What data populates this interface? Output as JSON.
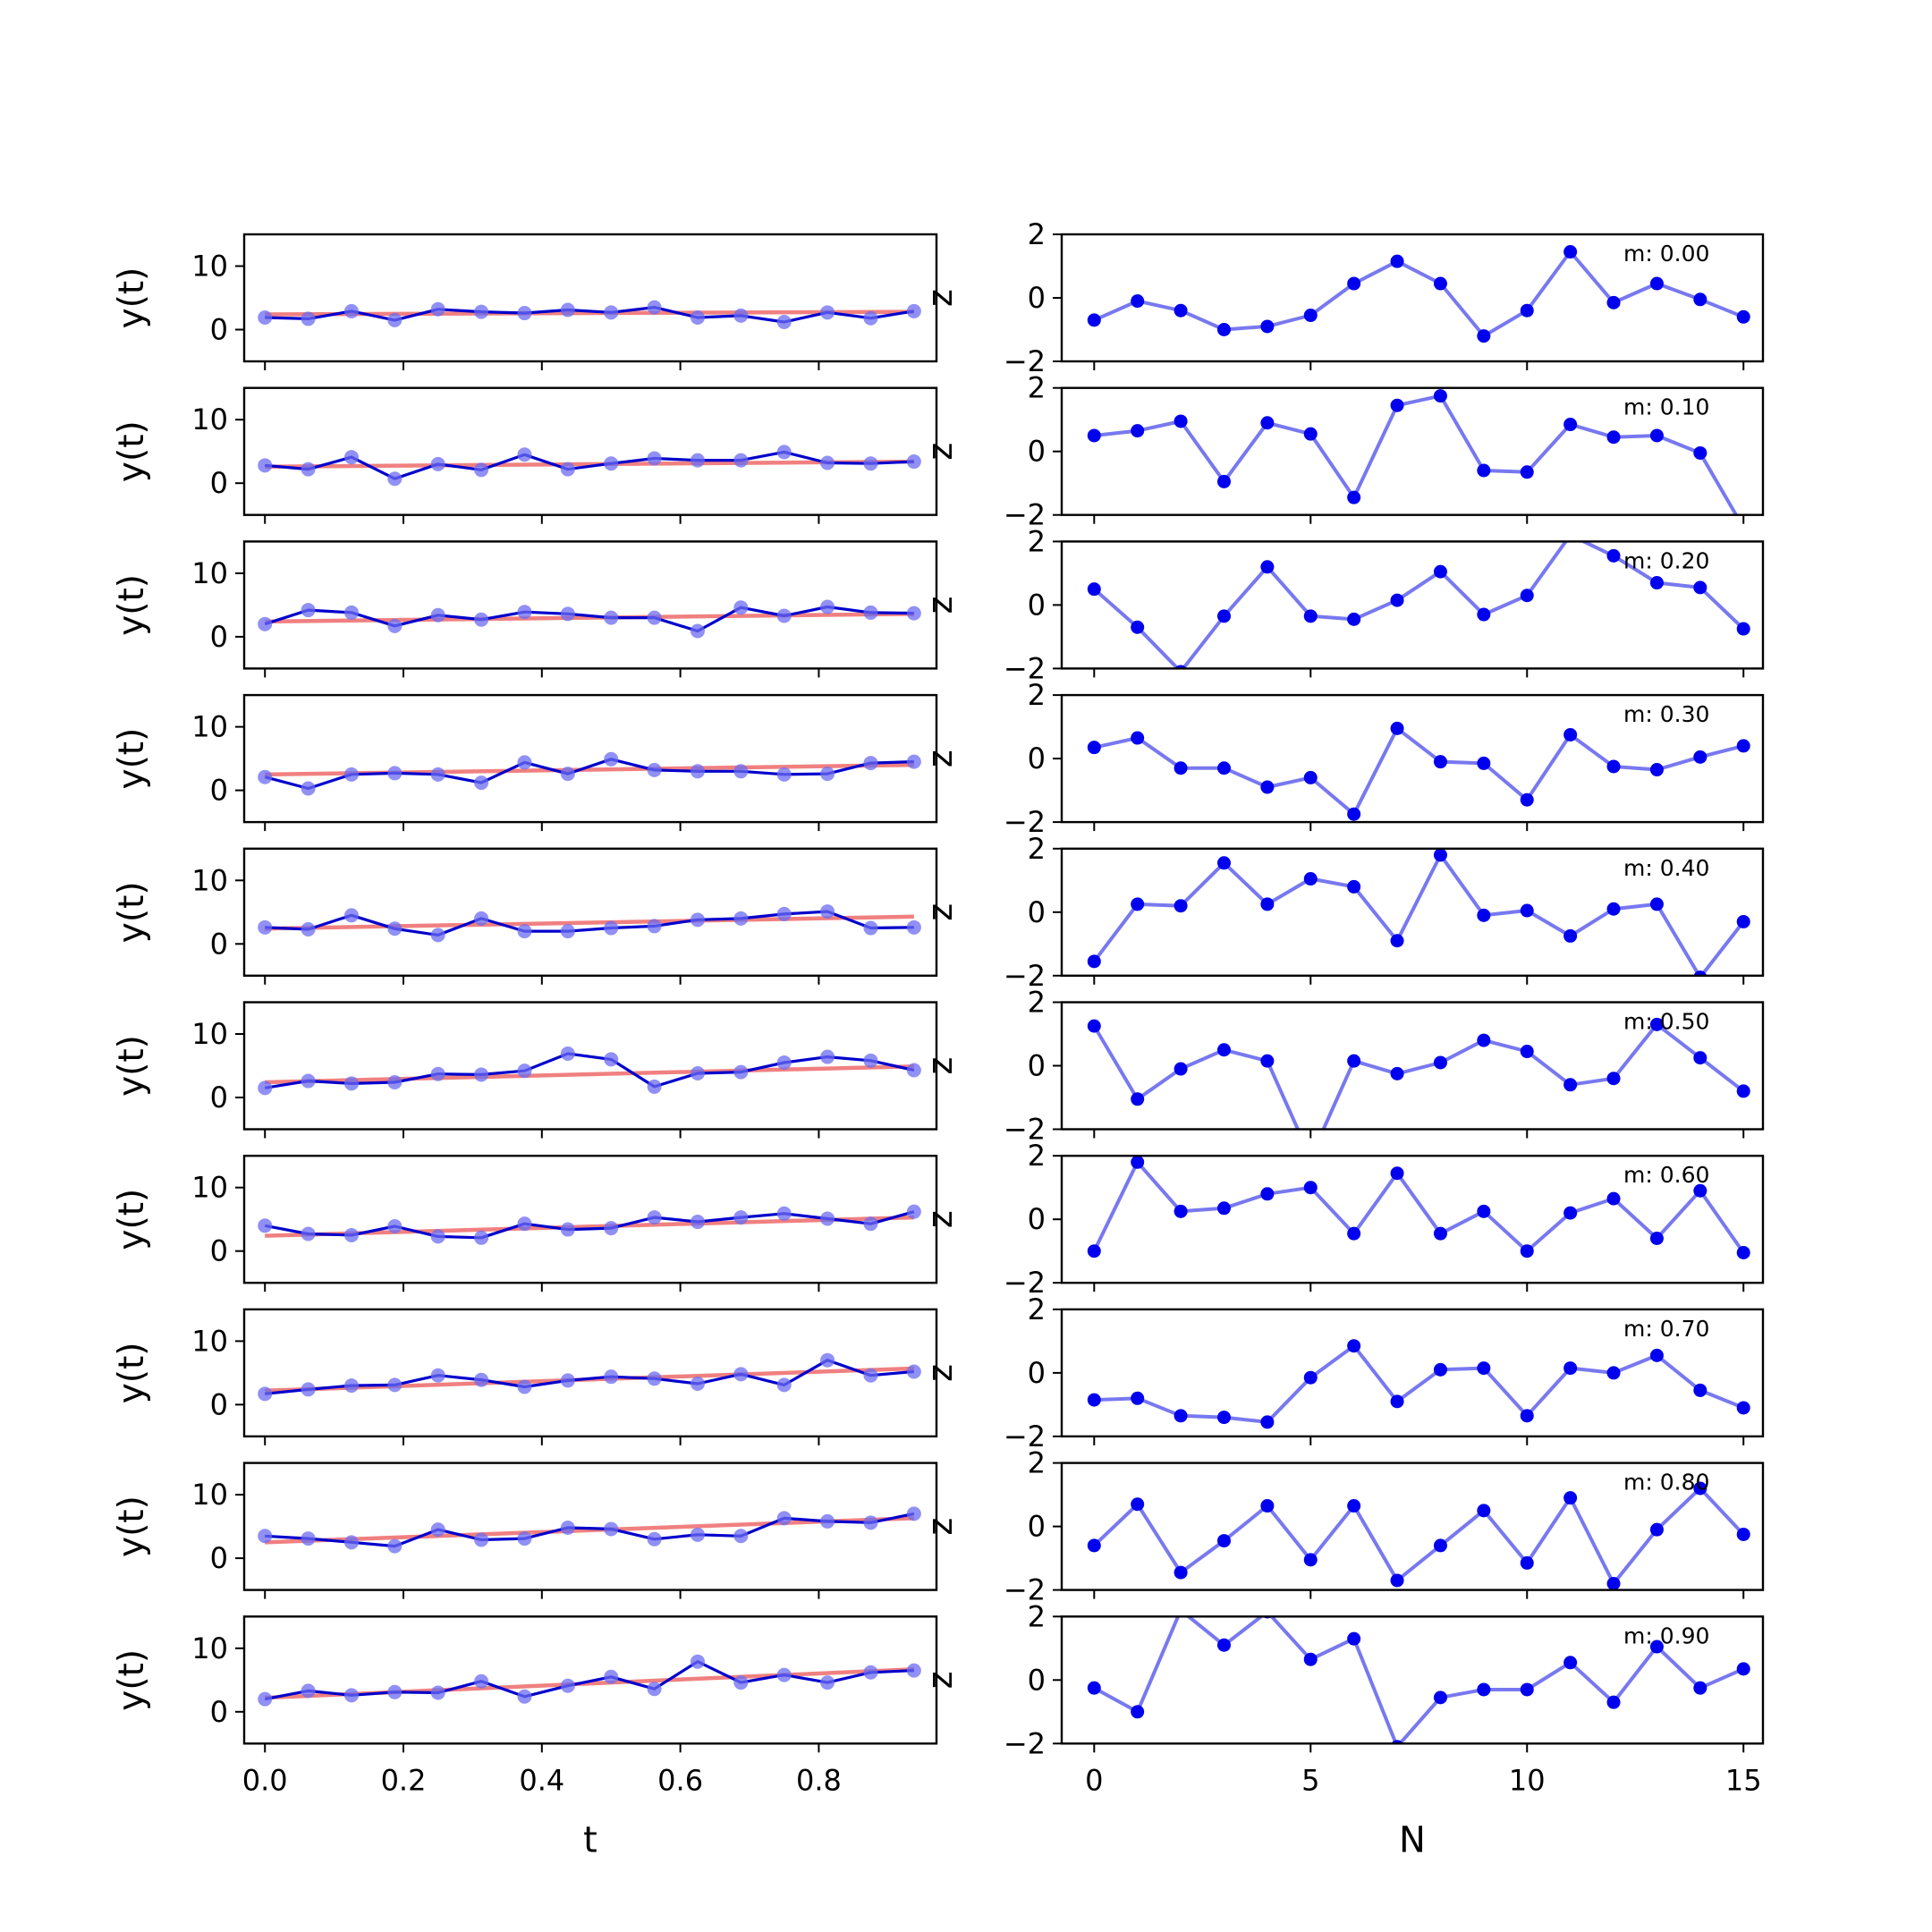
{
  "chart_data": [
    {
      "type": "line",
      "panel_column": "left",
      "xlabel": "t",
      "ylabel": "y(t)",
      "xticks": [
        "0.0",
        "0.2",
        "0.4",
        "0.6",
        "0.8"
      ],
      "yticks": [
        "0",
        "10"
      ],
      "xlim": [
        -0.03,
        0.97
      ],
      "ylim": [
        -5,
        15
      ],
      "x": [
        0.0,
        0.0625,
        0.125,
        0.1875,
        0.25,
        0.3125,
        0.375,
        0.4375,
        0.5,
        0.5625,
        0.625,
        0.6875,
        0.75,
        0.8125,
        0.875,
        0.9375
      ],
      "series_colors": {
        "observed": "#0000cc",
        "fit": "#f08080",
        "points": "#6b6bf2"
      },
      "series": [
        {
          "observed": [
            1.9,
            1.7,
            2.9,
            1.5,
            3.2,
            2.8,
            2.6,
            3.1,
            2.7,
            3.5,
            1.9,
            2.2,
            1.2,
            2.7,
            1.8,
            2.9
          ],
          "fit": [
            2.4,
            2.8
          ]
        },
        {
          "observed": [
            2.8,
            2.2,
            4.1,
            0.7,
            3.0,
            2.1,
            4.5,
            2.2,
            3.1,
            3.9,
            3.6,
            3.6,
            4.9,
            3.2,
            3.1,
            3.4
          ],
          "fit": [
            2.6,
            3.4
          ]
        },
        {
          "observed": [
            2.0,
            4.2,
            3.8,
            1.7,
            3.4,
            2.7,
            3.9,
            3.6,
            3.0,
            3.0,
            0.9,
            4.6,
            3.3,
            4.7,
            3.8,
            3.7
          ],
          "fit": [
            2.4,
            3.6
          ]
        },
        {
          "observed": [
            2.1,
            0.3,
            2.5,
            2.7,
            2.5,
            1.2,
            4.4,
            2.6,
            4.9,
            3.2,
            3.0,
            3.0,
            2.5,
            2.6,
            4.3,
            4.5
          ],
          "fit": [
            2.5,
            4.0
          ]
        },
        {
          "observed": [
            2.6,
            2.3,
            4.5,
            2.4,
            1.4,
            4.0,
            2.0,
            2.0,
            2.5,
            2.8,
            3.8,
            4.0,
            4.7,
            5.1,
            2.5,
            2.6
          ],
          "fit": [
            2.4,
            4.3
          ]
        },
        {
          "observed": [
            1.5,
            2.6,
            2.2,
            2.4,
            3.7,
            3.6,
            4.2,
            6.9,
            6.0,
            1.7,
            3.8,
            4.0,
            5.5,
            6.4,
            5.8,
            4.3
          ],
          "fit": [
            2.4,
            4.9
          ]
        },
        {
          "observed": [
            4.0,
            2.7,
            2.5,
            3.9,
            2.3,
            2.1,
            4.3,
            3.4,
            3.6,
            5.3,
            4.6,
            5.3,
            5.9,
            5.1,
            4.3,
            6.2
          ],
          "fit": [
            2.4,
            5.3
          ]
        },
        {
          "observed": [
            1.7,
            2.4,
            3.0,
            3.1,
            4.6,
            3.9,
            2.8,
            3.8,
            4.4,
            4.1,
            3.3,
            4.8,
            3.1,
            7.0,
            4.6,
            5.2
          ],
          "fit": [
            2.2,
            5.7
          ]
        },
        {
          "observed": [
            3.5,
            3.1,
            2.5,
            1.9,
            4.5,
            2.9,
            3.1,
            4.8,
            4.6,
            3.0,
            3.7,
            3.5,
            6.3,
            5.8,
            5.6,
            7.0
          ],
          "fit": [
            2.5,
            6.3
          ]
        },
        {
          "observed": [
            2.0,
            3.3,
            2.6,
            3.1,
            3.0,
            4.8,
            2.4,
            4.1,
            5.5,
            3.6,
            7.9,
            4.6,
            5.8,
            4.6,
            6.2,
            6.5
          ],
          "fit": [
            2.2,
            6.7
          ]
        }
      ]
    },
    {
      "type": "line",
      "panel_column": "right",
      "xlabel": "N",
      "ylabel_glyph": "z",
      "xticks": [
        "0",
        "5",
        "10",
        "15"
      ],
      "yticks": [
        "−2",
        "0",
        "2"
      ],
      "xlim": [
        -0.75,
        15.45
      ],
      "ylim": [
        -2,
        2
      ],
      "x": [
        0,
        1,
        2,
        3,
        4,
        5,
        6,
        7,
        8,
        9,
        10,
        11,
        12,
        13,
        14,
        15
      ],
      "series_colors": {
        "line": "#7878f0",
        "markers": "#0000ee"
      },
      "series": [
        {
          "label": "m: 0.00",
          "values": [
            -0.7,
            -0.1,
            -0.4,
            -1.0,
            -0.9,
            -0.55,
            0.45,
            1.15,
            0.45,
            -1.2,
            -0.4,
            1.45,
            -0.15,
            0.45,
            -0.05,
            -0.6
          ]
        },
        {
          "label": "m: 0.10",
          "values": [
            0.5,
            0.65,
            0.95,
            -0.95,
            0.9,
            0.55,
            -1.45,
            1.45,
            1.75,
            -0.6,
            -0.65,
            0.85,
            0.45,
            0.5,
            -0.05,
            -2.4
          ]
        },
        {
          "label": "m: 0.20",
          "values": [
            0.5,
            -0.7,
            -2.1,
            -0.35,
            1.2,
            -0.35,
            -0.45,
            0.15,
            1.05,
            -0.3,
            0.3,
            2.2,
            1.55,
            0.7,
            0.55,
            -0.75
          ]
        },
        {
          "label": "m: 0.30",
          "values": [
            0.35,
            0.65,
            -0.3,
            -0.3,
            -0.9,
            -0.6,
            -1.75,
            0.95,
            -0.1,
            -0.15,
            -1.3,
            0.75,
            -0.25,
            -0.35,
            0.05,
            0.4
          ]
        },
        {
          "label": "m: 0.40",
          "values": [
            -1.55,
            0.25,
            0.2,
            1.55,
            0.25,
            1.05,
            0.8,
            -0.9,
            1.8,
            -0.1,
            0.05,
            -0.75,
            0.1,
            0.25,
            -2.05,
            -0.3
          ]
        },
        {
          "label": "m: 0.50",
          "values": [
            1.25,
            -1.05,
            -0.1,
            0.5,
            0.15,
            -2.9,
            0.15,
            -0.25,
            0.1,
            0.8,
            0.45,
            -0.6,
            -0.4,
            1.3,
            0.25,
            -0.8
          ]
        },
        {
          "label": "m: 0.60",
          "values": [
            -1.0,
            1.8,
            0.25,
            0.35,
            0.8,
            1.0,
            -0.45,
            1.45,
            -0.45,
            0.25,
            -1.0,
            0.2,
            0.65,
            -0.6,
            0.9,
            -1.05
          ]
        },
        {
          "label": "m: 0.70",
          "values": [
            -0.85,
            -0.8,
            -1.35,
            -1.4,
            -1.55,
            -0.15,
            0.85,
            -0.9,
            0.1,
            0.15,
            -1.35,
            0.15,
            0.0,
            0.55,
            -0.55,
            -1.1
          ]
        },
        {
          "label": "m: 0.80",
          "values": [
            -0.6,
            0.7,
            -1.45,
            -0.45,
            0.65,
            -1.05,
            0.65,
            -1.7,
            -0.6,
            0.5,
            -1.15,
            0.9,
            -1.8,
            -0.1,
            1.2,
            -0.25
          ]
        },
        {
          "label": "m: 0.90",
          "values": [
            -0.25,
            -1.0,
            2.2,
            1.1,
            2.15,
            0.65,
            1.3,
            -2.1,
            -0.55,
            -0.3,
            -0.3,
            0.55,
            -0.7,
            1.05,
            -0.25,
            0.35
          ]
        }
      ]
    }
  ]
}
